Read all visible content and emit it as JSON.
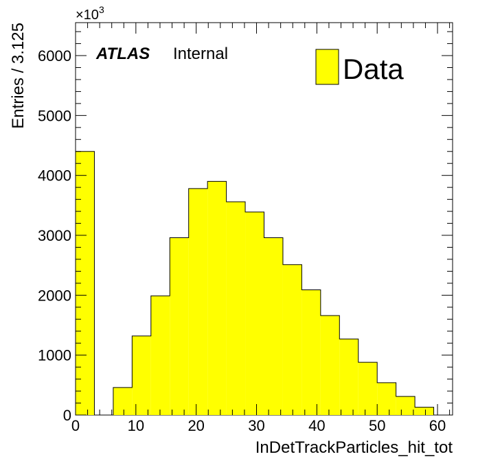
{
  "chart_data": {
    "type": "bar",
    "title": "",
    "xlabel": "InDetTrackParticles_hit_tot",
    "ylabel": "Entries / 3.125",
    "y_multiplier_label": "×10",
    "y_multiplier_exponent": "3",
    "xlim": [
      0,
      62.5
    ],
    "ylim": [
      0,
      6550
    ],
    "x_ticks": [
      0,
      10,
      20,
      30,
      40,
      50,
      60
    ],
    "y_ticks": [
      0,
      1000,
      2000,
      3000,
      4000,
      5000,
      6000
    ],
    "bin_width": 3.125,
    "bin_edges": [
      0,
      3.125,
      6.25,
      9.375,
      12.5,
      15.625,
      18.75,
      21.875,
      25,
      28.125,
      31.25,
      34.375,
      37.5,
      40.625,
      43.75,
      46.875,
      50,
      53.125,
      56.25,
      59.375,
      62.5
    ],
    "series": [
      {
        "name": "Data",
        "values": [
          4400,
          0,
          460,
          1320,
          1990,
          2960,
          3780,
          3900,
          3560,
          3390,
          2960,
          2510,
          2090,
          1660,
          1270,
          880,
          540,
          310,
          130,
          0
        ]
      }
    ],
    "grid": false,
    "legend_position": "top-right",
    "annotation_bold": "ATLAS",
    "annotation_plain": "Internal",
    "colors": {
      "fill": "#ffff00",
      "line": "#000000",
      "background": "#ffffff"
    }
  }
}
